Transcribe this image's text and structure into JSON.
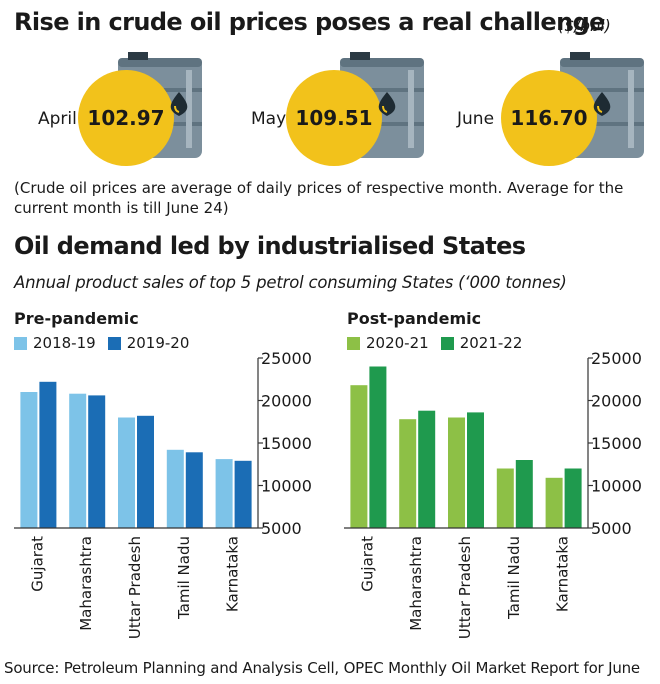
{
  "header": {
    "title": "Rise in crude oil prices poses a real challenge",
    "unit": "($/bbl)"
  },
  "prices": [
    {
      "month": "April",
      "value": "102.97"
    },
    {
      "month": "May",
      "value": "109.51"
    },
    {
      "month": "June",
      "value": "116.70"
    }
  ],
  "note": "(Crude oil prices are average of daily prices of respective month. Average for the current month is till June 24)",
  "section2": {
    "title": "Oil demand led by industrialised States",
    "subtitle": "Annual product sales of top 5 petrol consuming States (‘000 tonnes)"
  },
  "colors": {
    "coin": "#f2c21b",
    "barrel": "#7c8f9c",
    "drop": "#1e2b33",
    "s2018": "#7dc3e8",
    "s2019": "#1b6db5",
    "s2020": "#8dc046",
    "s2021": "#1f9a4e"
  },
  "chart_data": [
    {
      "type": "bar",
      "title": "Pre-pandemic",
      "categories": [
        "Gujarat",
        "Maharashtra",
        "Uttar Pradesh",
        "Tamil Nadu",
        "Karnataka"
      ],
      "series": [
        {
          "name": "2018-19",
          "values": [
            21000,
            20800,
            18000,
            14200,
            13100
          ]
        },
        {
          "name": "2019-20",
          "values": [
            22200,
            20600,
            18200,
            13900,
            12900
          ]
        }
      ],
      "ylim": [
        5000,
        25000
      ],
      "yticks": [
        "25000",
        "20000",
        "15000",
        "10000",
        "5000"
      ]
    },
    {
      "type": "bar",
      "title": "Post-pandemic",
      "categories": [
        "Gujarat",
        "Maharashtra",
        "Uttar Pradesh",
        "Tamil Nadu",
        "Karnataka"
      ],
      "series": [
        {
          "name": "2020-21",
          "values": [
            21800,
            17800,
            18000,
            12000,
            10900
          ]
        },
        {
          "name": "2021-22",
          "values": [
            24000,
            18800,
            18600,
            13000,
            12000
          ]
        }
      ],
      "ylim": [
        5000,
        25000
      ],
      "yticks": [
        "25000",
        "20000",
        "15000",
        "10000",
        "5000"
      ]
    }
  ],
  "source": "Source: Petroleum Planning and Analysis Cell, OPEC Monthly Oil Market Report for June"
}
